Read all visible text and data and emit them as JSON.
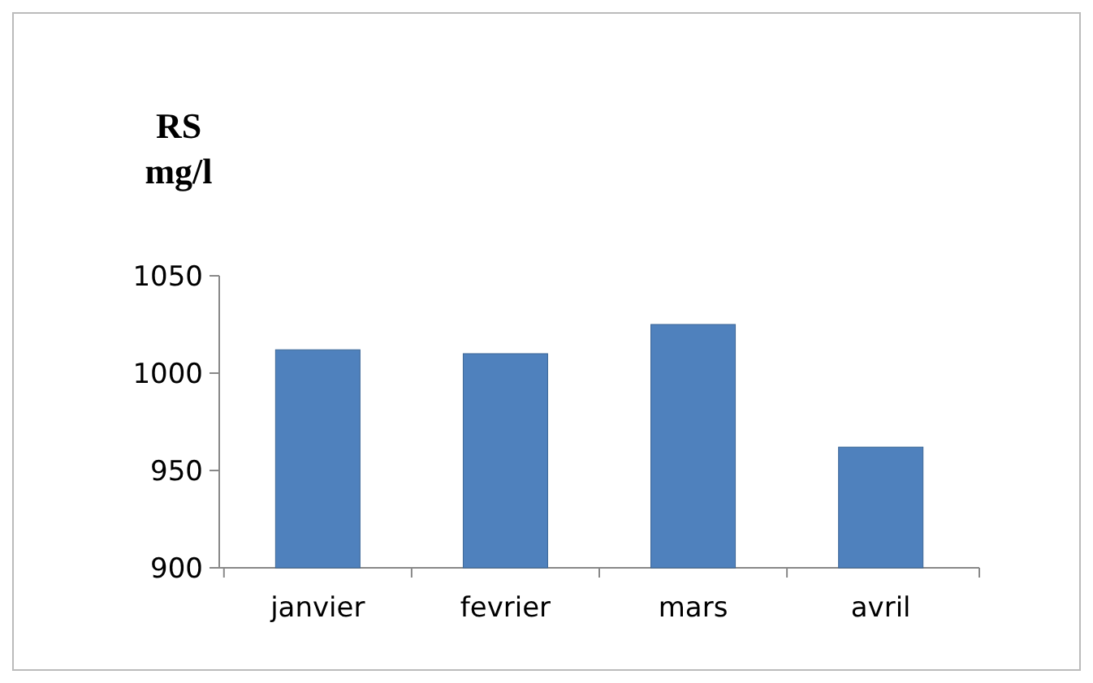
{
  "chart_data": {
    "type": "bar",
    "ylabel": "RS mg/l",
    "categories": [
      "janvier",
      "fevrier",
      "mars",
      "avril"
    ],
    "values": [
      1012,
      1010,
      1025,
      962
    ],
    "color": "#4f81bd",
    "ylim": [
      900,
      1050
    ],
    "yticks": [
      900,
      950,
      1000,
      1050
    ],
    "grid": false
  }
}
